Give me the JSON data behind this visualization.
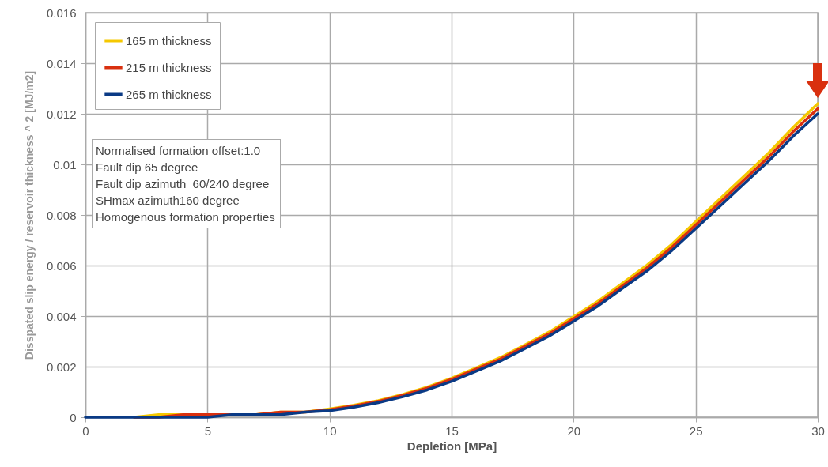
{
  "chart_data": {
    "type": "line",
    "xlabel": "Depletion [MPa]",
    "ylabel": "Disspated slip energy / reservoir thickness ^ 2 [MJ/m2]",
    "x": [
      0,
      1,
      2,
      3,
      4,
      5,
      6,
      7,
      8,
      9,
      10,
      11,
      12,
      13,
      14,
      15,
      16,
      17,
      18,
      19,
      20,
      21,
      22,
      23,
      24,
      25,
      26,
      27,
      28,
      29,
      30
    ],
    "series": [
      {
        "name": "165 m thickness",
        "color": "#f5c800",
        "values": [
          null,
          null,
          0.0,
          0.0001,
          0.0001,
          0.0001,
          0.0001,
          0.0001,
          0.0002,
          0.0002,
          0.00033,
          0.00048,
          0.00066,
          0.0009,
          0.00119,
          0.00154,
          0.00195,
          0.00236,
          0.00286,
          0.00337,
          0.00398,
          0.00459,
          0.0053,
          0.00601,
          0.00682,
          0.00773,
          0.00864,
          0.00955,
          0.01046,
          0.01147,
          0.0124
        ]
      },
      {
        "name": "215 m thickness",
        "color": "#d9300f",
        "values": [
          null,
          null,
          0.0,
          0.0,
          0.0001,
          0.0001,
          0.0001,
          0.0001,
          0.0002,
          0.0002,
          0.0003,
          0.00045,
          0.00063,
          0.00087,
          0.00115,
          0.0015,
          0.0019,
          0.0023,
          0.0028,
          0.0033,
          0.0039,
          0.0045,
          0.0052,
          0.0059,
          0.0067,
          0.0076,
          0.0085,
          0.0094,
          0.0103,
          0.0113,
          0.0122
        ]
      },
      {
        "name": "265 m thickness",
        "color": "#0a3a85",
        "values": [
          0.0,
          0.0,
          0.0,
          0.0,
          0.0,
          0.0,
          0.0001,
          0.0001,
          0.0001,
          0.0002,
          0.00026,
          0.0004,
          0.00058,
          0.00081,
          0.00108,
          0.00142,
          0.00182,
          0.00222,
          0.00271,
          0.00321,
          0.0038,
          0.0044,
          0.0051,
          0.00578,
          0.00657,
          0.00746,
          0.00835,
          0.00925,
          0.01014,
          0.01112,
          0.012
        ]
      }
    ],
    "xlim": [
      0,
      30
    ],
    "xticks": [
      0,
      5,
      10,
      15,
      20,
      25,
      30
    ],
    "ylim": [
      0,
      0.016
    ],
    "yticks": [
      0,
      0.002,
      0.004,
      0.006,
      0.008,
      0.01,
      0.012,
      0.014,
      0.016
    ],
    "grid": true,
    "legend": "top left",
    "marker": "none",
    "line_style": "solid",
    "annotations": [
      "Normalised formation offset:1.0",
      "Fault dip 65 degree",
      "Fault dip azimuth  60/240 degree",
      "SHmax azimuth160 degree",
      "Homogenous formation properties"
    ]
  }
}
